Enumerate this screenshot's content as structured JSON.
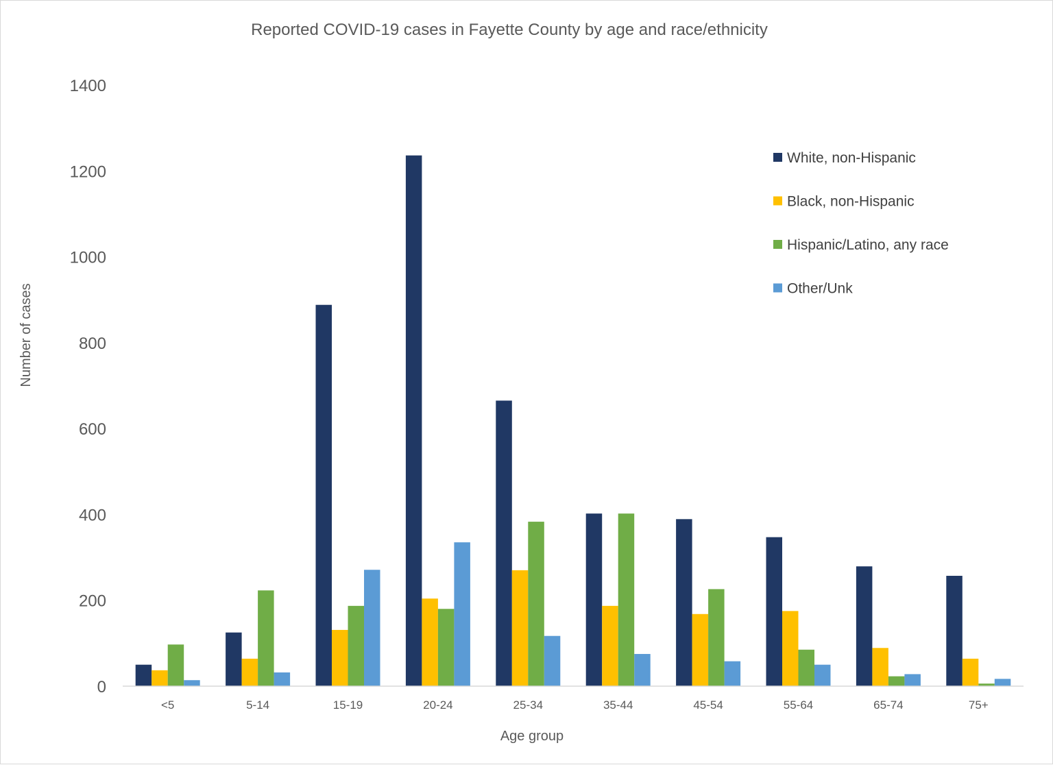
{
  "chart_data": {
    "type": "bar",
    "title": "Reported COVID-19 cases in Fayette County by age and race/ethnicity",
    "xlabel": "Age group",
    "ylabel": "Number of cases",
    "ylim": [
      0,
      1400
    ],
    "yticks": [
      0,
      200,
      400,
      600,
      800,
      1000,
      1200,
      1400
    ],
    "grid": false,
    "legend_position": "top-right",
    "categories": [
      "<5",
      "5-14",
      "15-19",
      "20-24",
      "25-34",
      "35-44",
      "45-54",
      "55-64",
      "65-74",
      "75+"
    ],
    "series": [
      {
        "name": "White, non-Hispanic",
        "color": "#203864",
        "values": [
          50,
          125,
          888,
          1236,
          665,
          402,
          389,
          347,
          279,
          257
        ]
      },
      {
        "name": "Black, non-Hispanic",
        "color": "#FFC000",
        "values": [
          37,
          64,
          131,
          204,
          270,
          187,
          168,
          175,
          89,
          64
        ]
      },
      {
        "name": "Hispanic/Latino, any race",
        "color": "#70AD47",
        "values": [
          97,
          223,
          187,
          180,
          383,
          402,
          226,
          85,
          23,
          6
        ]
      },
      {
        "name": "Other/Unk",
        "color": "#5B9BD5",
        "values": [
          14,
          32,
          271,
          335,
          117,
          75,
          58,
          50,
          28,
          17
        ]
      }
    ]
  }
}
